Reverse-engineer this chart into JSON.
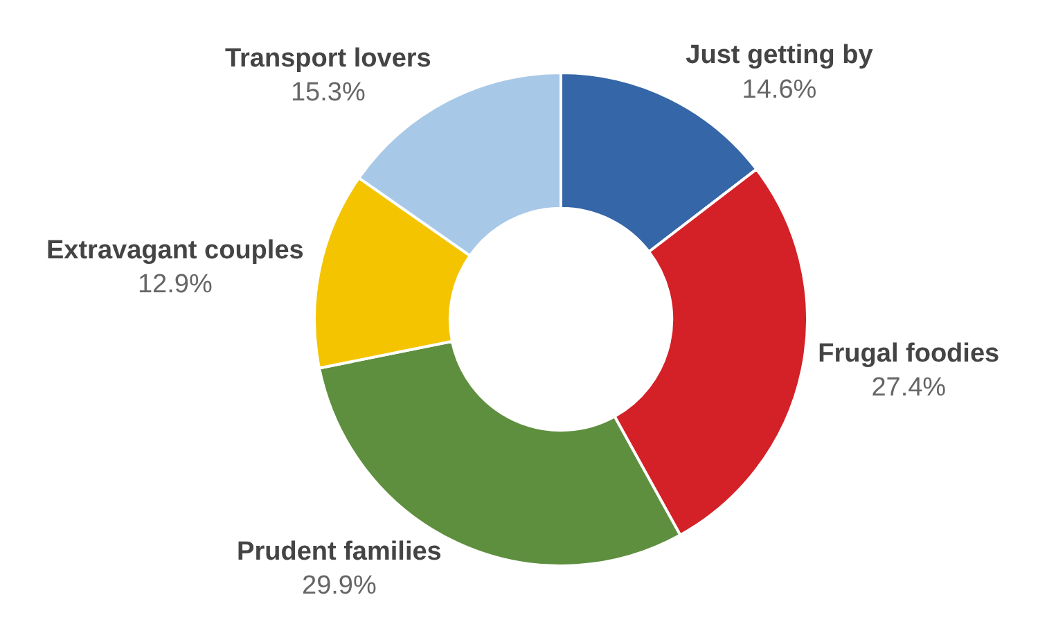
{
  "chart_data": {
    "type": "donut",
    "categories": [
      "Just getting by",
      "Frugal foodies",
      "Prudent families",
      "Extravagant couples",
      "Transport lovers"
    ],
    "values": [
      14.6,
      27.4,
      29.9,
      12.9,
      15.3
    ],
    "value_labels": [
      "14.6%",
      "27.4%",
      "29.9%",
      "12.9%",
      "15.3%"
    ],
    "colors": [
      "#3466a8",
      "#d42027",
      "#5e8f3e",
      "#f5c400",
      "#a8c8e8"
    ],
    "legend": false
  }
}
